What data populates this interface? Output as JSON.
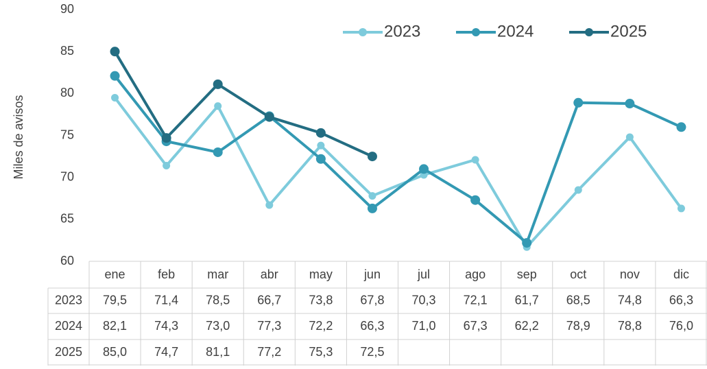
{
  "chart_data": {
    "type": "line",
    "y_label": "Miles de avisos",
    "categories": [
      "ene",
      "feb",
      "mar",
      "abr",
      "may",
      "jun",
      "jul",
      "ago",
      "sep",
      "oct",
      "nov",
      "dic"
    ],
    "series": [
      {
        "name": "2023",
        "color": "#7ecbdc",
        "values": [
          79.5,
          71.4,
          78.5,
          66.7,
          73.8,
          67.8,
          70.3,
          72.1,
          61.7,
          68.5,
          74.8,
          66.3
        ],
        "value_labels": [
          "79,5",
          "71,4",
          "78,5",
          "66,7",
          "73,8",
          "67,8",
          "70,3",
          "72,1",
          "61,7",
          "68,5",
          "74,8",
          "66,3"
        ]
      },
      {
        "name": "2024",
        "color": "#3399b3",
        "values": [
          82.1,
          74.3,
          73.0,
          77.3,
          72.2,
          66.3,
          71.0,
          67.3,
          62.2,
          78.9,
          78.8,
          76.0
        ],
        "value_labels": [
          "82,1",
          "74,3",
          "73,0",
          "77,3",
          "72,2",
          "66,3",
          "71,0",
          "67,3",
          "62,2",
          "78,9",
          "78,8",
          "76,0"
        ]
      },
      {
        "name": "2025",
        "color": "#236d82",
        "values": [
          85.0,
          74.7,
          81.1,
          77.2,
          75.3,
          72.5,
          null,
          null,
          null,
          null,
          null,
          null
        ],
        "value_labels": [
          "85,0",
          "74,7",
          "81,1",
          "77,2",
          "75,3",
          "72,5",
          null,
          null,
          null,
          null,
          null,
          null
        ]
      }
    ],
    "ylim": [
      60,
      90
    ],
    "yticks": [
      60,
      65,
      70,
      75,
      80,
      85,
      90
    ],
    "grid": false,
    "legend": "top"
  }
}
